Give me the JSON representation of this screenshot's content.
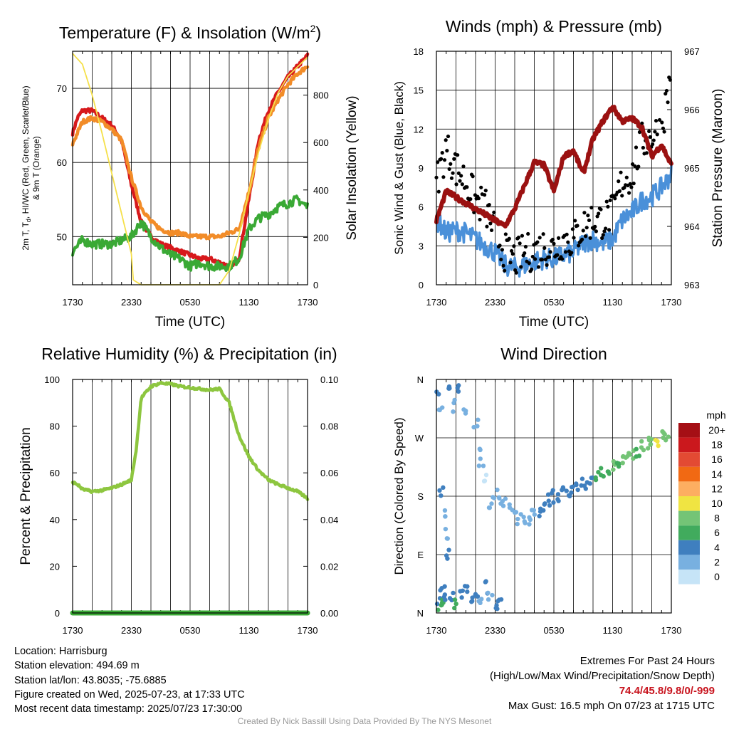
{
  "colors": {
    "red": "#d7191c",
    "orange": "#f28c28",
    "green": "#3aa935",
    "yellow": "#f5e04a",
    "blue": "#4a90d9",
    "black": "#000000",
    "maroon": "#9b1111",
    "rh": "#8dc63f",
    "precip": "#3aa935"
  },
  "common": {
    "x_ticks": [
      "1730",
      "2330",
      "0530",
      "1130",
      "1730"
    ],
    "x_label": "Time (UTC)"
  },
  "panels": {
    "temp": {
      "title_main": "Temperature (F) & Insolation (W/m",
      "title_sup": "2",
      "title_end": ")",
      "ylabel_line1": "2m T, T",
      "ylabel_sub": "d",
      "ylabel_line1_end": ", HI/WC (Red, Green, Scarlet/Blue)",
      "ylabel_line2": "& 9m T (Orange)",
      "y2label": "Solar Insolation (Yellow)"
    },
    "wind": {
      "title": "Winds (mph) & Pressure (mb)",
      "ylabel": "Sonic Wind & Gust (Blue, Black)",
      "y2label": "Station Pressure (Maroon)"
    },
    "rh": {
      "title": "Relative Humidity (%) & Precipitation (in)",
      "ylabel": "Percent & Precipitation"
    },
    "dir": {
      "title": "Wind Direction",
      "ylabel": "Direction (Colored By Speed)",
      "legend_title": "mph",
      "legend_labels": [
        "20+",
        "18",
        "16",
        "14",
        "12",
        "10",
        "8",
        "6",
        "4",
        "2",
        "0"
      ],
      "legend_colors": [
        "#a50f15",
        "#cb181d",
        "#e34a33",
        "#f16913",
        "#fdae61",
        "#f0e442",
        "#74c476",
        "#41ab5d",
        "#3f7fbf",
        "#78b0e0",
        "#c6e4f7"
      ]
    }
  },
  "chart_data": [
    {
      "type": "line",
      "title": "Temperature (F) & Insolation (W/m2)",
      "xlabel": "Time (UTC)",
      "ylabel": "2m T, Td, HI/WC (Red, Green, Scarlet/Blue) & 9m T (Orange)",
      "y2label": "Solar Insolation (Yellow)",
      "x_hours": [
        0,
        2,
        4,
        6,
        8,
        10,
        12,
        14,
        16,
        18,
        20,
        22,
        24
      ],
      "ylim": [
        43.5,
        75
      ],
      "y_ticks": [
        50,
        60,
        70
      ],
      "y2lim": [
        0,
        985
      ],
      "y2_ticks": [
        0,
        200,
        400,
        600,
        800
      ],
      "series": [
        {
          "name": "2m T",
          "axis": "left",
          "color": "red",
          "x": [
            0,
            0.5,
            1,
            2,
            3,
            4,
            5,
            6,
            7,
            8,
            9,
            10,
            11,
            12,
            13,
            14,
            15,
            16,
            17,
            18,
            19,
            20,
            21,
            22,
            23,
            24
          ],
          "values": [
            64,
            66,
            67,
            67,
            66,
            65,
            63,
            57,
            52,
            50,
            49,
            48.5,
            48,
            47.5,
            47,
            47,
            46.5,
            46,
            47,
            55,
            63,
            67,
            69.5,
            71.5,
            73,
            74.4
          ]
        },
        {
          "name": "9m T",
          "axis": "left",
          "color": "orange",
          "x": [
            0,
            0.5,
            1,
            2,
            3,
            4,
            5,
            6,
            7,
            8,
            9,
            10,
            11,
            12,
            13,
            14,
            15,
            16,
            17,
            18,
            19,
            20,
            21,
            22,
            23,
            24
          ],
          "values": [
            62.5,
            64,
            65.5,
            66,
            65.5,
            64.5,
            63,
            58,
            54,
            52,
            51,
            50.5,
            50.5,
            50,
            50,
            50,
            50,
            50.5,
            51,
            56,
            62,
            66,
            68.5,
            70.5,
            72,
            73
          ]
        },
        {
          "name": "2m Td",
          "axis": "left",
          "color": "green",
          "x": [
            0,
            1,
            2,
            3,
            4,
            5,
            6,
            7,
            8,
            9,
            10,
            11,
            12,
            13,
            14,
            15,
            16,
            17,
            18,
            19,
            20,
            21,
            22,
            23,
            24
          ],
          "values": [
            48,
            49.5,
            49,
            49,
            49,
            49.5,
            50,
            52,
            50,
            48.5,
            47.5,
            47,
            46,
            46.5,
            46,
            46,
            46,
            47,
            51,
            52.5,
            53,
            54,
            54.5,
            55,
            54
          ]
        },
        {
          "name": "Solar Insolation",
          "axis": "right",
          "color": "yellow",
          "x": [
            0,
            1,
            2,
            3,
            4,
            5,
            6,
            6.2,
            7,
            8,
            9,
            10,
            11,
            12,
            13,
            14,
            15,
            16,
            17,
            18,
            19,
            20,
            21,
            22,
            23,
            24
          ],
          "values": [
            975,
            930,
            800,
            640,
            470,
            300,
            130,
            20,
            0,
            0,
            0,
            0,
            0,
            0,
            0,
            0,
            0,
            60,
            210,
            390,
            560,
            700,
            810,
            880,
            920,
            960
          ]
        }
      ]
    },
    {
      "type": "line",
      "title": "Winds (mph) & Pressure (mb)",
      "xlabel": "Time (UTC)",
      "ylabel": "Sonic Wind & Gust (Blue, Black)",
      "y2label": "Station Pressure (Maroon)",
      "x_hours": [
        0,
        2,
        4,
        6,
        8,
        10,
        12,
        14,
        16,
        18,
        20,
        22,
        24
      ],
      "ylim": [
        0,
        18
      ],
      "y_ticks": [
        0,
        3,
        6,
        9,
        12,
        15,
        18
      ],
      "y2lim": [
        963,
        967
      ],
      "y2_ticks": [
        963,
        964,
        965,
        966,
        967
      ],
      "series": [
        {
          "name": "Sonic Wind",
          "axis": "left",
          "color": "blue",
          "x": [
            0,
            1,
            2,
            3,
            4,
            5,
            6,
            7,
            8,
            9,
            10,
            11,
            12,
            13,
            14,
            15,
            16,
            17,
            18,
            19,
            20,
            21,
            22,
            23,
            24
          ],
          "values": [
            5,
            4,
            4.2,
            4,
            3.5,
            3,
            2.5,
            1.5,
            1.3,
            1.5,
            1.8,
            2,
            2,
            2.3,
            2.5,
            3.2,
            3.5,
            3.2,
            3.5,
            5,
            5.6,
            6.5,
            6.8,
            7.5,
            8.5
          ]
        },
        {
          "name": "Gust",
          "axis": "left",
          "color": "black",
          "x": [
            0,
            1,
            2,
            3,
            4,
            5,
            6,
            7,
            8,
            9,
            10,
            11,
            12,
            13,
            14,
            15,
            16,
            17,
            18,
            19,
            20,
            21,
            22,
            23,
            24
          ],
          "values": [
            8,
            10.5,
            9,
            8,
            6.5,
            6,
            4,
            2.5,
            2,
            2.5,
            2.5,
            3,
            2.8,
            3.5,
            3.5,
            4.5,
            5,
            5,
            5.5,
            8,
            8.5,
            11,
            11.5,
            12,
            16.5
          ]
        },
        {
          "name": "Station Pressure",
          "axis": "right",
          "color": "maroon",
          "x": [
            0,
            1,
            2,
            3,
            4,
            5,
            6,
            7,
            8,
            9,
            10,
            11,
            12,
            13,
            14,
            15,
            16,
            17,
            18,
            19,
            20,
            21,
            22,
            23,
            24
          ],
          "values": [
            964.1,
            964.6,
            964.5,
            964.4,
            964.3,
            964.2,
            964.1,
            964.0,
            964.3,
            964.7,
            965.1,
            965.05,
            964.6,
            965.2,
            965.3,
            964.9,
            965.5,
            965.8,
            966.05,
            965.8,
            965.85,
            965.7,
            965.2,
            965.4,
            965.05
          ]
        }
      ]
    },
    {
      "type": "line",
      "title": "Relative Humidity (%) & Precipitation (in)",
      "xlabel": "Time (UTC)",
      "ylabel": "Percent & Precipitation",
      "x_hours": [
        0,
        2,
        4,
        6,
        8,
        10,
        12,
        14,
        16,
        18,
        20,
        22,
        24
      ],
      "ylim": [
        0,
        100
      ],
      "y_ticks": [
        0,
        20,
        40,
        60,
        80,
        100
      ],
      "y2lim": [
        0,
        0.1
      ],
      "y2_ticks": [
        "0.00",
        "0.02",
        "0.04",
        "0.06",
        "0.08",
        "0.10"
      ],
      "series": [
        {
          "name": "Relative Humidity",
          "axis": "left",
          "color": "rh",
          "x": [
            0,
            0.5,
            1,
            2,
            3,
            4,
            5,
            6,
            6.5,
            7,
            8,
            9,
            10,
            11,
            12,
            13,
            14,
            15,
            16,
            17,
            18,
            19,
            20,
            21,
            22,
            23,
            24
          ],
          "values": [
            56,
            55,
            53,
            52,
            52.5,
            53.5,
            55,
            57,
            70,
            92,
            97,
            98.5,
            98,
            97,
            96.5,
            96,
            95.5,
            96,
            90,
            76,
            67,
            61,
            57,
            55,
            53.5,
            52,
            49
          ]
        },
        {
          "name": "Precipitation",
          "axis": "right",
          "color": "precip",
          "x": [
            0,
            24
          ],
          "values": [
            0,
            0
          ]
        }
      ]
    },
    {
      "type": "scatter",
      "title": "Wind Direction",
      "xlabel": "",
      "ylabel": "Direction (Colored By Speed)",
      "x_hours": [
        0,
        2,
        4,
        6,
        8,
        10,
        12,
        14,
        16,
        18,
        20,
        22,
        24
      ],
      "ylim": [
        0,
        360
      ],
      "y_ticks": [
        "N",
        "E",
        "S",
        "W",
        "N"
      ],
      "legend_title": "mph",
      "points": [
        [
          0.2,
          20,
          3
        ],
        [
          0.4,
          12,
          5
        ],
        [
          0.6,
          35,
          4
        ],
        [
          0.8,
          18,
          6
        ],
        [
          1.0,
          30,
          3
        ],
        [
          1.5,
          25,
          4
        ],
        [
          2.0,
          15,
          5
        ],
        [
          2.5,
          28,
          3
        ],
        [
          3.0,
          35,
          4
        ],
        [
          3.5,
          22,
          4
        ],
        [
          4.0,
          30,
          3
        ],
        [
          4.5,
          25,
          2
        ],
        [
          5.0,
          40,
          3
        ],
        [
          5.5,
          30,
          2
        ],
        [
          6.0,
          15,
          3
        ],
        [
          6.5,
          20,
          4
        ],
        [
          0.0,
          335,
          3
        ],
        [
          0.5,
          320,
          2
        ],
        [
          1.2,
          355,
          4
        ],
        [
          1.8,
          320,
          2
        ],
        [
          2.3,
          345,
          3
        ],
        [
          2.8,
          312,
          2
        ],
        [
          4.0,
          290,
          1
        ],
        [
          4.3,
          255,
          1
        ],
        [
          4.6,
          235,
          1
        ],
        [
          5.0,
          210,
          0
        ],
        [
          0.5,
          190,
          3
        ],
        [
          0.7,
          150,
          2
        ],
        [
          0.9,
          120,
          2
        ],
        [
          1.2,
          90,
          3
        ],
        [
          5.5,
          170,
          2
        ],
        [
          6.0,
          180,
          2
        ],
        [
          6.5,
          175,
          2
        ],
        [
          7.0,
          168,
          2
        ],
        [
          7.5,
          160,
          2
        ],
        [
          8.0,
          150,
          2
        ],
        [
          8.5,
          145,
          2
        ],
        [
          9.0,
          140,
          2
        ],
        [
          9.5,
          145,
          2
        ],
        [
          10.0,
          150,
          2
        ],
        [
          10.5,
          158,
          3
        ],
        [
          11.0,
          165,
          3
        ],
        [
          11.5,
          175,
          3
        ],
        [
          12.0,
          180,
          3
        ],
        [
          12.5,
          182,
          3
        ],
        [
          13.0,
          185,
          3
        ],
        [
          13.5,
          188,
          4
        ],
        [
          14.0,
          190,
          4
        ],
        [
          14.5,
          195,
          3
        ],
        [
          15.0,
          198,
          4
        ],
        [
          15.5,
          200,
          4
        ],
        [
          16.0,
          205,
          4
        ],
        [
          16.5,
          210,
          5
        ],
        [
          17.0,
          215,
          5
        ],
        [
          17.5,
          220,
          6
        ],
        [
          18.0,
          225,
          7
        ],
        [
          18.5,
          230,
          6
        ],
        [
          19.0,
          235,
          7
        ],
        [
          19.5,
          240,
          7
        ],
        [
          20.0,
          245,
          8
        ],
        [
          20.5,
          250,
          6
        ],
        [
          21.0,
          255,
          8
        ],
        [
          21.5,
          260,
          7
        ],
        [
          22.0,
          262,
          8
        ],
        [
          22.5,
          265,
          10
        ],
        [
          23.0,
          270,
          7
        ],
        [
          23.5,
          275,
          8
        ],
        [
          24.0,
          278,
          7
        ]
      ]
    }
  ],
  "footer": {
    "location": "Location: Harrisburg",
    "elevation": "Station elevation: 494.69 m",
    "latlon": "Station lat/lon: 43.8035; -75.6885",
    "created": "Figure created on Wed, 2025-07-23, at 17:33 UTC",
    "recent": "Most recent data timestamp: 2025/07/23 17:30:00",
    "extremes_title": "Extremes For Past 24 Hours",
    "extremes_sub": "(High/Low/Max Wind/Precipitation/Snow Depth)",
    "extremes_values": "74.4/45.8/9.8/0/-999",
    "max_gust": "Max Gust: 16.5 mph On 07/23 at 1715 UTC",
    "credit": "Created By Nick Bassill Using Data Provided By The NYS Mesonet"
  }
}
